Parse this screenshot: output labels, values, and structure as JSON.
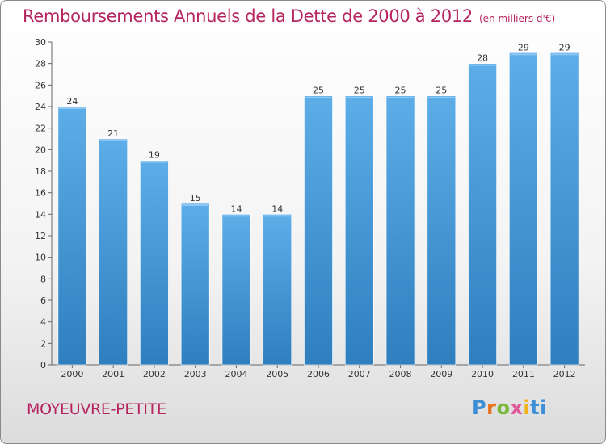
{
  "header": {
    "title": "Remboursements Annuels de la Dette de 2000 à 2012",
    "unit": "(en milliers d'€)"
  },
  "footer": {
    "town": "MOYEUVRE-PETITE",
    "brand": "Proxiti"
  },
  "colors": {
    "bar_light": "#5dade8",
    "bar_dark": "#2f7fbf",
    "title": "#b5245f"
  },
  "chart_data": {
    "type": "bar",
    "title": "Remboursements Annuels de la Dette de 2000 à 2012",
    "subtitle": "(en milliers d'€)",
    "xlabel": "",
    "ylabel": "",
    "categories": [
      "2000",
      "2001",
      "2002",
      "2003",
      "2004",
      "2005",
      "2006",
      "2007",
      "2008",
      "2009",
      "2010",
      "2011",
      "2012"
    ],
    "values": [
      24,
      21,
      19,
      15,
      14,
      14,
      25,
      25,
      25,
      25,
      28,
      29,
      29
    ],
    "ylim": [
      0,
      30
    ],
    "yticks": [
      0,
      2,
      4,
      6,
      8,
      10,
      12,
      14,
      16,
      18,
      20,
      22,
      24,
      26,
      28,
      30
    ],
    "grid": false,
    "legend": "none"
  }
}
